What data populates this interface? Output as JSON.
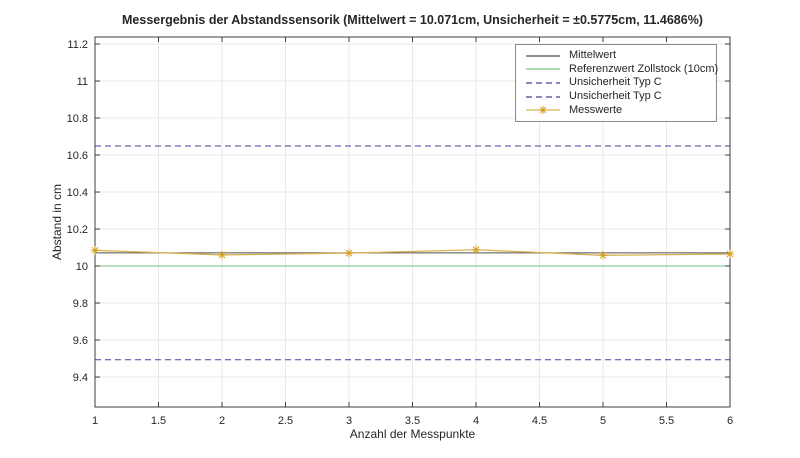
{
  "figure": {
    "background": "#ffffff"
  },
  "colors": {
    "grid": "#e9e9e9",
    "axis": "#3c3c3c",
    "text": "#262626",
    "legend_border": "#8a8a8a"
  },
  "stats": {
    "mittelwert_cm": 10.071,
    "unsicherheit_cm": 0.5775,
    "unsicherheit_prozent": 11.4686
  },
  "chart_data": {
    "type": "line",
    "title": "Messergebnis der Abstandssensorik (Mittelwert = 10.071cm, Unsicherheit = ±0.5775cm, 11.4686%)",
    "xlabel": "Anzahl der Messpunkte",
    "ylabel": "Abstand in cm",
    "xlim": [
      1,
      6
    ],
    "ylim": [
      9.238,
      11.238
    ],
    "xticks": [
      1,
      1.5,
      2,
      2.5,
      3,
      3.5,
      4,
      4.5,
      5,
      5.5,
      6
    ],
    "yticks": [
      9.4,
      9.6,
      9.8,
      10,
      10.2,
      10.4,
      10.6,
      10.8,
      11,
      11.2
    ],
    "grid": true,
    "legend_position": "top-right",
    "x": [
      1,
      2,
      3,
      4,
      5,
      6
    ],
    "series": [
      {
        "name": "Mittelwert",
        "kind": "hline",
        "value": 10.071,
        "color": "#4f4f4f",
        "dash": "solid",
        "marker": "none"
      },
      {
        "name": "Referenzwert Zollstock (10cm)",
        "kind": "hline",
        "value": 10.0,
        "color": "#76c27d",
        "dash": "solid",
        "marker": "none"
      },
      {
        "name": "Unsicherheit Typ C",
        "kind": "hline",
        "value": 10.6485,
        "color": "#41419c",
        "dash": "dashed",
        "marker": "none"
      },
      {
        "name": "Unsicherheit Typ C",
        "kind": "hline",
        "value": 9.4935,
        "color": "#41419c",
        "dash": "dashed",
        "marker": "none"
      },
      {
        "name": "Messwerte",
        "kind": "line",
        "values": [
          10.085,
          10.06,
          10.07,
          10.088,
          10.058,
          10.065
        ],
        "color": "#d8b355",
        "marker": "asterisk",
        "marker_color": "#d49f1e",
        "dash": "solid"
      }
    ]
  }
}
